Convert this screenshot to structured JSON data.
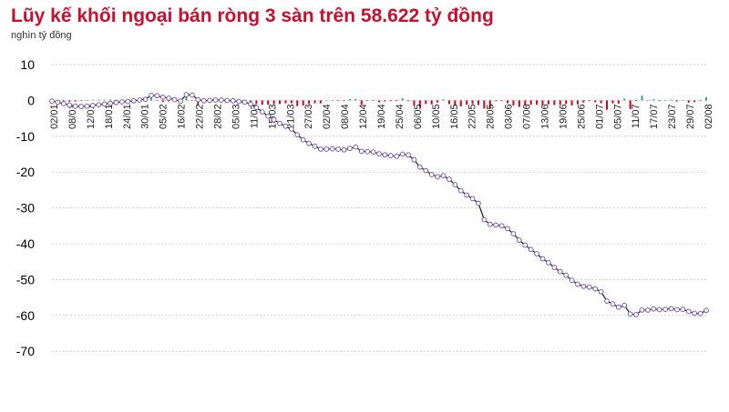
{
  "title": "Lũy kế khối ngoại bán ròng 3 sàn trên 58.622 tỷ đồng",
  "unit": "nghìn tỷ đồng",
  "colors": {
    "title": "#c8102e",
    "line": "#1a1a1a",
    "marker": "#7a5cb0",
    "bar_neg": "#d0021b",
    "bar_pos": "#2aa876"
  },
  "chart_data": {
    "type": "line",
    "title": "Lũy kế khối ngoại bán ròng 3 sàn trên 58.622 tỷ đồng",
    "ylabel": "nghìn tỷ đồng",
    "ylim": [
      -70,
      10
    ],
    "yticks": [
      10,
      0,
      -10,
      -20,
      -30,
      -40,
      -50,
      -60,
      -70
    ],
    "grid": true,
    "xticks": [
      "02/01",
      "08/01",
      "12/01",
      "18/01",
      "24/01",
      "30/01",
      "05/02",
      "16/02",
      "22/02",
      "28/02",
      "05/03",
      "11/03",
      "15/03",
      "21/03",
      "27/03",
      "02/04",
      "08/04",
      "12/04",
      "19/04",
      "25/04",
      "06/05",
      "10/05",
      "16/05",
      "22/05",
      "28/05",
      "03/06",
      "07/06",
      "13/06",
      "19/06",
      "25/06",
      "01/07",
      "05/07",
      "11/07",
      "17/07",
      "23/07",
      "29/07",
      "02/08"
    ],
    "series": [
      {
        "values": [
          -0.2,
          -0.5,
          -0.9,
          -1.3,
          -1.6,
          -1.7,
          -1.6,
          -1.4,
          -1.2,
          -1.0,
          -0.8,
          -0.6,
          -0.4,
          -0.3,
          -0.1,
          0.1,
          0.3,
          1.4,
          1.3,
          0.9,
          0.6,
          0.2,
          -0.2,
          1.6,
          1.5,
          0.2,
          -0.1,
          0.0,
          0.1,
          0.1,
          0.0,
          -0.1,
          -0.3,
          -0.5,
          -1.0,
          -2.0,
          -3.2,
          -4.4,
          -5.4,
          -6.4,
          -7.2,
          -8.0,
          -9.6,
          -11.0,
          -12.0,
          -12.8,
          -13.6,
          -13.6,
          -13.5,
          -13.6,
          -13.8,
          -13.4,
          -13.0,
          -14.2,
          -14.3,
          -14.4,
          -14.9,
          -15.2,
          -15.4,
          -15.6,
          -15.0,
          -15.2,
          -16.6,
          -18.6,
          -19.6,
          -20.7,
          -21.3,
          -21.0,
          -22.0,
          -23.5,
          -25.2,
          -26.4,
          -27.4,
          -28.7,
          -33.3,
          -34.6,
          -34.8,
          -35.0,
          -35.8,
          -37.2,
          -39.0,
          -40.4,
          -41.6,
          -42.8,
          -44.2,
          -45.3,
          -46.6,
          -47.8,
          -48.8,
          -50.2,
          -51.3,
          -51.9,
          -52.1,
          -52.6,
          -53.4,
          -56.0,
          -56.8,
          -57.7,
          -57.2,
          -59.6,
          -59.8,
          -58.5,
          -58.5,
          -58.2,
          -58.4,
          -58.3,
          -58.1,
          -58.4,
          -58.3,
          -58.9,
          -59.4,
          -59.5,
          -58.6
        ]
      },
      {
        "values": [
          -0.2,
          -0.3,
          -0.4,
          -0.4,
          -0.3,
          -0.1,
          0.1,
          0.2,
          0.2,
          0.2,
          0.2,
          0.2,
          0.2,
          0.1,
          0.2,
          0.2,
          0.2,
          1.1,
          -0.1,
          -0.4,
          -0.3,
          -0.4,
          -0.4,
          1.8,
          -0.1,
          -1.3,
          -0.3,
          0.1,
          0.1,
          0.0,
          -0.1,
          -0.1,
          -0.2,
          -0.2,
          -0.5,
          -1.0,
          -1.2,
          -1.2,
          -1.0,
          -1.0,
          -0.8,
          -0.8,
          -1.6,
          -1.4,
          -1.0,
          -0.8,
          -0.8,
          0.0,
          0.1,
          -0.1,
          -0.2,
          0.4,
          0.4,
          -1.2,
          -0.1,
          -0.1,
          -0.5,
          -0.3,
          -0.2,
          -0.2,
          0.6,
          -0.2,
          -1.4,
          -2.0,
          -1.0,
          -1.1,
          -0.6,
          0.3,
          -1.0,
          -1.5,
          -1.7,
          -1.2,
          -1.0,
          -1.3,
          -2.3,
          -2.3,
          -0.2,
          -0.2,
          -0.8,
          -1.4,
          -1.8,
          -1.4,
          -1.2,
          -1.2,
          -1.4,
          -1.1,
          -1.3,
          -1.2,
          -1.0,
          -1.4,
          -1.1,
          -0.6,
          -0.2,
          -0.5,
          -0.8,
          -2.6,
          -0.8,
          -0.9,
          0.5,
          -2.4,
          -0.2,
          1.3,
          0.0,
          0.3,
          -0.2,
          0.1,
          0.2,
          -0.3,
          0.1,
          -0.6,
          -0.5,
          -0.1,
          0.9
        ]
      }
    ]
  }
}
